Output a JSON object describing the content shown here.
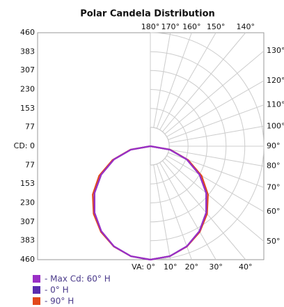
{
  "chart_data": {
    "type": "polar",
    "title": "Polar Candela Distribution",
    "rlim": [
      0,
      460
    ],
    "rticks": [
      {
        "value": 0,
        "label": "CD: 0"
      },
      77,
      153,
      230,
      307,
      383,
      460
    ],
    "angle_ticks": [
      {
        "value": 0,
        "label": "VA: 0°"
      },
      {
        "value": 10,
        "label": "10°"
      },
      {
        "value": 20,
        "label": "20°"
      },
      {
        "value": 30,
        "label": "30°"
      },
      {
        "value": 40,
        "label": "40°"
      },
      {
        "value": 50,
        "label": "50°"
      },
      {
        "value": 60,
        "label": "60°"
      },
      {
        "value": 70,
        "label": "70°"
      },
      {
        "value": 80,
        "label": "80°"
      },
      {
        "value": 90,
        "label": "90°"
      },
      {
        "value": 100,
        "label": "100°"
      },
      {
        "value": 110,
        "label": "110°"
      },
      {
        "value": 120,
        "label": "120°"
      },
      {
        "value": 130,
        "label": "130°"
      },
      {
        "value": 140,
        "label": "140°"
      },
      {
        "value": 150,
        "label": "150°"
      },
      {
        "value": 160,
        "label": "160°"
      },
      {
        "value": 170,
        "label": "170°"
      },
      {
        "value": 180,
        "label": "180°"
      }
    ],
    "angles": [
      0,
      10,
      20,
      30,
      40,
      50,
      60,
      70,
      80,
      90
    ],
    "series": [
      {
        "name": "- Max Cd: 60° H",
        "color": "#9a2fc6",
        "values": [
          460,
          453,
          432,
          398,
          352,
          296,
          230,
          157,
          80,
          0
        ]
      },
      {
        "name": "- 0° H",
        "color": "#5a2db0",
        "values": [
          460,
          453,
          432,
          398,
          352,
          296,
          230,
          157,
          80,
          0
        ]
      },
      {
        "name": "- 90° H",
        "color": "#e2491c",
        "values": [
          460,
          453,
          433,
          401,
          358,
          305,
          240,
          163,
          82,
          0
        ]
      }
    ]
  }
}
